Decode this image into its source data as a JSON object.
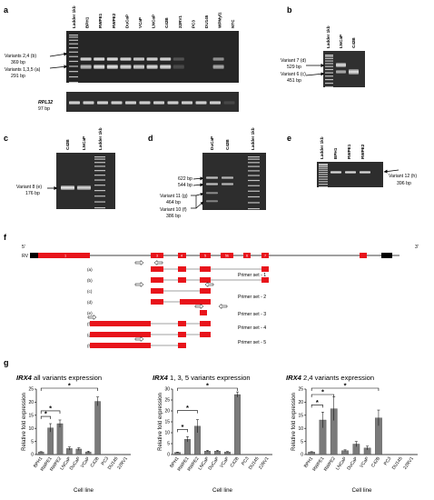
{
  "panel_labels": {
    "a": "a",
    "b": "b",
    "c": "c",
    "d": "d",
    "e": "e",
    "f": "f",
    "g": "g"
  },
  "panel_a": {
    "lanes": [
      "Ladder 1kb",
      "BPH1",
      "RWPE1",
      "RWPE2",
      "DuCaP",
      "VCaP",
      "LNCaP",
      "C42B",
      "22RV1",
      "PC3",
      "DU145",
      "WPMyl1",
      "NTC"
    ],
    "labels": [
      {
        "line1": "Variants 2,4 (b)",
        "line2": "369 bp"
      },
      {
        "line1": "Variants 1,3,5 (a)",
        "line2": "291 bp"
      }
    ],
    "control": {
      "gene": "RPL32",
      "size": "97 bp"
    }
  },
  "panel_b": {
    "lanes": [
      "Ladder 1kb",
      "LNCaP",
      "C42B"
    ],
    "labels": [
      {
        "line1": "Variant 7 (d)",
        "line2": "529 bp"
      },
      {
        "line1": "Variant 6 (c)",
        "line2": "451 bp"
      }
    ]
  },
  "panel_c": {
    "lanes": [
      "C42B",
      "LNCaP",
      "Ladder 1kb"
    ],
    "labels": [
      {
        "line1": "Variant 8 (e)",
        "line2": "176 bp"
      }
    ]
  },
  "panel_d": {
    "lanes": [
      "DuCaP",
      "C42B",
      "Ladder 1kb"
    ],
    "labels": [
      {
        "line1": "622 bp",
        "line2": ""
      },
      {
        "line1": "544 bp",
        "line2": ""
      },
      {
        "line1": "Variant 11 (g)",
        "line2": "464 bp"
      },
      {
        "line1": "Variant 10 (f)",
        "line2": "386 bp"
      }
    ]
  },
  "panel_e": {
    "lanes": [
      "Ladder 1kb",
      "BPH1",
      "RWPE1",
      "RWPE2"
    ],
    "labels": [
      {
        "line1": "Variant 12 (h)",
        "line2": "396 bp"
      }
    ]
  },
  "panel_f": {
    "five_prime": "5'",
    "three_prime": "3'",
    "rv": "RV",
    "exon_labels": [
      "1",
      "3",
      "4",
      "5",
      "5b",
      "6",
      "7"
    ],
    "variants": [
      "(a)",
      "(b)",
      "(c)",
      "(d)",
      "(e)",
      "(f)",
      "(g)",
      "(h)"
    ],
    "primer_sets": [
      "Primer set - 1",
      "Primer set - 2",
      "Primer set - 3",
      "Primer set - 4",
      "Primer set - 5"
    ]
  },
  "panel_g": {
    "charts": [
      {
        "gene": "IRX4",
        "title_rest": " all variants expression",
        "ylabel": "Relative fold expression",
        "xlabel": "Cell line"
      },
      {
        "gene": "IRX4",
        "title_rest": " 1, 3, 5 variants expression",
        "ylabel": "Relative fold expression",
        "xlabel": "Cell line"
      },
      {
        "gene": "IRX4",
        "title_rest": " 2,4 variants expression",
        "ylabel": "Relative fold expression",
        "xlabel": "Cell line"
      }
    ],
    "significance": "*"
  },
  "colors": {
    "exon": "#e8141b",
    "bar": "#7a7a7a",
    "gel_bg": "#2a2a2a",
    "band": "#f2f2f2"
  },
  "chart_data": [
    {
      "type": "bar",
      "title": "IRX4 all variants expression",
      "xlabel": "Cell line",
      "ylabel": "Relative fold expression",
      "categories": [
        "BPH1",
        "RWPE1",
        "RWPE2",
        "LNCaP",
        "DuCaP",
        "VCaP",
        "C42B",
        "PC3",
        "DU145",
        "22RV1"
      ],
      "values": [
        1,
        10.2,
        11.8,
        2.3,
        2.1,
        1.0,
        20.3,
        0.05,
        0.05,
        0.05
      ],
      "errors": [
        0.1,
        1.6,
        1.4,
        0.6,
        0.5,
        0.3,
        1.7,
        0.02,
        0.02,
        0.02
      ],
      "ylim": [
        0,
        25
      ],
      "yticks": [
        0,
        5,
        10,
        15,
        20,
        25
      ],
      "significance": [
        [
          "BPH1",
          "RWPE1"
        ],
        [
          "BPH1",
          "RWPE2"
        ],
        [
          "BPH1",
          "C42B"
        ]
      ]
    },
    {
      "type": "bar",
      "title": "IRX4 1, 3, 5 variants expression",
      "xlabel": "Cell line",
      "ylabel": "Relative fold expression",
      "categories": [
        "BPH1",
        "RWPE1",
        "RWPE2",
        "LNCaP",
        "DuCaP",
        "VCaP",
        "C42B",
        "PC3",
        "DU145",
        "22RV1"
      ],
      "values": [
        1,
        7,
        13,
        1.6,
        1.6,
        1.2,
        27.5,
        0.05,
        0.05,
        0.05
      ],
      "errors": [
        0.1,
        1.2,
        3,
        0.3,
        0.3,
        0.2,
        1.2,
        0.02,
        0.02,
        0.02
      ],
      "ylim": [
        0,
        30
      ],
      "yticks": [
        0,
        5,
        10,
        15,
        20,
        25,
        30
      ],
      "significance": [
        [
          "BPH1",
          "RWPE1"
        ],
        [
          "BPH1",
          "RWPE2"
        ],
        [
          "BPH1",
          "C42B"
        ]
      ]
    },
    {
      "type": "bar",
      "title": "IRX4 2,4 variants expression",
      "xlabel": "Cell line",
      "ylabel": "Relative fold expression",
      "categories": [
        "BPH1",
        "RWPE1",
        "RWPE2",
        "LNCaP",
        "DuCaP",
        "VCaP",
        "C42B",
        "PC3",
        "DU145",
        "22RV1"
      ],
      "values": [
        1,
        13.2,
        17.5,
        1.5,
        4,
        2.5,
        14,
        0.05,
        0.05,
        0.05
      ],
      "errors": [
        0.1,
        3,
        4.5,
        0.3,
        1,
        0.7,
        3,
        0.02,
        0.02,
        0.02
      ],
      "ylim": [
        0,
        25
      ],
      "yticks": [
        0,
        5,
        10,
        15,
        20,
        25
      ],
      "significance": [
        [
          "BPH1",
          "RWPE1"
        ],
        [
          "BPH1",
          "RWPE2"
        ],
        [
          "BPH1",
          "C42B"
        ]
      ]
    }
  ]
}
